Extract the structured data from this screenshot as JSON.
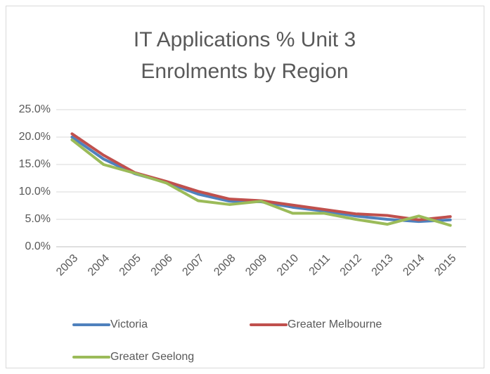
{
  "chart_data": {
    "type": "line",
    "title": [
      "IT Applications % Unit 3",
      "Enrolments by Region"
    ],
    "categories": [
      "2003",
      "2004",
      "2005",
      "2006",
      "2007",
      "2008",
      "2009",
      "2010",
      "2011",
      "2012",
      "2013",
      "2014",
      "2015"
    ],
    "series": [
      {
        "name": "Victoria",
        "color": "#4f81bd",
        "values": [
          20.0,
          16.0,
          13.3,
          11.7,
          9.6,
          8.3,
          8.2,
          7.2,
          6.5,
          5.6,
          5.0,
          4.6,
          4.9
        ]
      },
      {
        "name": "Greater Melbourne",
        "color": "#c0504d",
        "values": [
          20.6,
          16.7,
          13.5,
          11.9,
          10.1,
          8.7,
          8.4,
          7.6,
          6.8,
          6.0,
          5.7,
          4.9,
          5.5
        ]
      },
      {
        "name": "Greater Geelong",
        "color": "#9bbb59",
        "values": [
          19.5,
          15.0,
          13.4,
          11.6,
          8.4,
          7.7,
          8.3,
          6.1,
          6.1,
          5.0,
          4.1,
          5.6,
          3.9
        ]
      }
    ],
    "ylim": [
      0,
      25
    ],
    "yticks": [
      {
        "value": 0,
        "label": "0.0%"
      },
      {
        "value": 5,
        "label": "5.0%"
      },
      {
        "value": 10,
        "label": "10.0%"
      },
      {
        "value": 15,
        "label": "15.0%"
      },
      {
        "value": 20,
        "label": "20.0%"
      },
      {
        "value": 25,
        "label": "25.0%"
      }
    ],
    "grid": true,
    "legend": "bottom"
  }
}
